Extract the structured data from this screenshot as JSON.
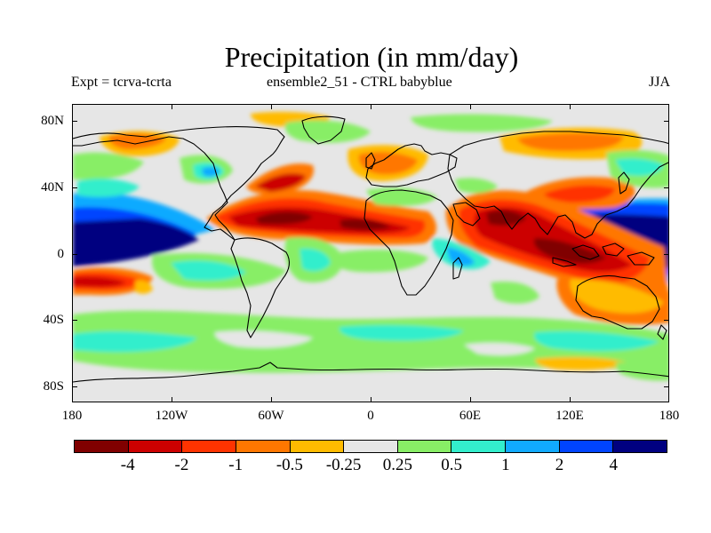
{
  "title": "Precipitation (in mm/day)",
  "subtitle_left": "Expt = tcrva-tcrta",
  "subtitle_center": "ensemble2_51 - CTRL babyblue",
  "subtitle_right": "JJA",
  "lat_labels": [
    "80N",
    "40N",
    "0",
    "40S",
    "80S"
  ],
  "lon_labels": [
    "180",
    "120W",
    "60W",
    "0",
    "60E",
    "120E",
    "180"
  ],
  "colorbar": {
    "colors": [
      "#800000",
      "#cc0000",
      "#ff3300",
      "#ff7700",
      "#ffbb00",
      "#e6e6e6",
      "#88ee66",
      "#33eecc",
      "#11aaff",
      "#0044ff",
      "#000080"
    ],
    "labels": [
      "-4",
      "-2",
      "-1",
      "-0.5",
      "-0.25",
      "0.25",
      "0.5",
      "1",
      "2",
      "4"
    ]
  },
  "colors": {
    "background": "#ffffff",
    "no_change": "#e6e6e6",
    "coastline": "#000000"
  }
}
